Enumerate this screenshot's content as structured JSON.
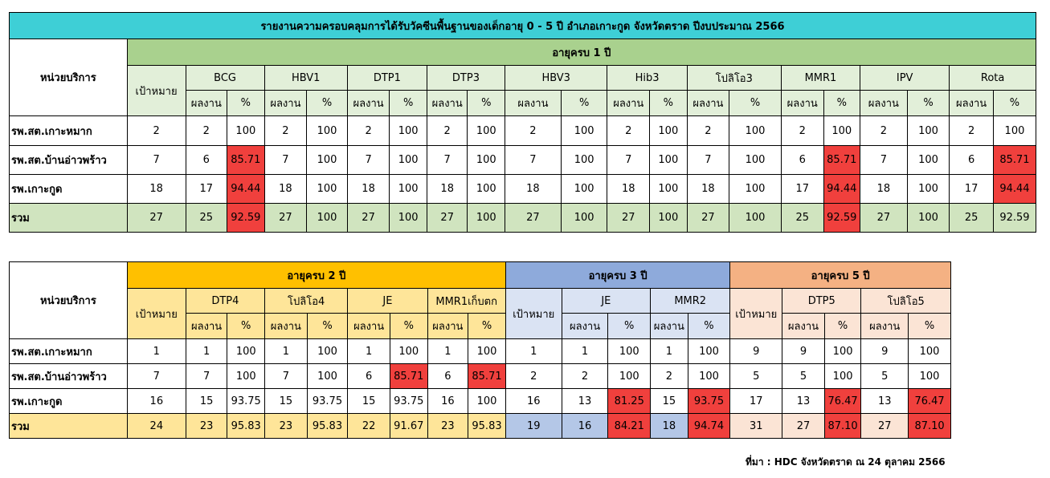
{
  "title": "รายงานความครอบคลุมการได้รับวัคซีนพื้นฐานของเด็กอายุ 0 - 5 ปี อำเภอเกาะกูด จังหวัดตราด  ปีงบประมาณ 2566",
  "unit_label": "หน่วยบริการ",
  "target_label": "เป้าหมาย",
  "count_label": "ผลงาน",
  "pct_label": "%",
  "colors": {
    "title": "#3ecfd6",
    "age1": "#a9d18e",
    "age2": "#ffc000",
    "age3": "#8eaadb",
    "age5": "#f4b183",
    "alert": "#f0403d"
  },
  "table1": {
    "group_label": "อายุครบ 1 ปี",
    "vaccines": [
      "BCG",
      "HBV1",
      "DTP1",
      "DTP3",
      "HBV3",
      "Hib3",
      "โปลิโอ3",
      "MMR1",
      "IPV",
      "Rota"
    ],
    "rows": [
      {
        "unit": "รพ.สต.เกาะหมาก",
        "target": "2",
        "cells": [
          [
            "2",
            "100"
          ],
          [
            "2",
            "100"
          ],
          [
            "2",
            "100"
          ],
          [
            "2",
            "100"
          ],
          [
            "2",
            "100"
          ],
          [
            "2",
            "100"
          ],
          [
            "2",
            "100"
          ],
          [
            "2",
            "100"
          ],
          [
            "2",
            "100"
          ],
          [
            "2",
            "100"
          ]
        ]
      },
      {
        "unit": "รพ.สต.บ้านอ่าวพร้าว",
        "target": "7",
        "cells": [
          [
            "6",
            "85.71"
          ],
          [
            "7",
            "100"
          ],
          [
            "7",
            "100"
          ],
          [
            "7",
            "100"
          ],
          [
            "7",
            "100"
          ],
          [
            "7",
            "100"
          ],
          [
            "7",
            "100"
          ],
          [
            "6",
            "85.71"
          ],
          [
            "7",
            "100"
          ],
          [
            "6",
            "85.71"
          ]
        ]
      },
      {
        "unit": "รพ.เกาะกูด",
        "target": "18",
        "cells": [
          [
            "17",
            "94.44"
          ],
          [
            "18",
            "100"
          ],
          [
            "18",
            "100"
          ],
          [
            "18",
            "100"
          ],
          [
            "18",
            "100"
          ],
          [
            "18",
            "100"
          ],
          [
            "18",
            "100"
          ],
          [
            "17",
            "94.44"
          ],
          [
            "18",
            "100"
          ],
          [
            "17",
            "94.44"
          ]
        ]
      },
      {
        "unit": "รวม",
        "target": "27",
        "cells": [
          [
            "25",
            "92.59"
          ],
          [
            "27",
            "100"
          ],
          [
            "27",
            "100"
          ],
          [
            "27",
            "100"
          ],
          [
            "27",
            "100"
          ],
          [
            "27",
            "100"
          ],
          [
            "27",
            "100"
          ],
          [
            "25",
            "92.59"
          ],
          [
            "27",
            "100"
          ],
          [
            "25",
            "92.59"
          ]
        ]
      }
    ]
  },
  "table2": {
    "groups": [
      {
        "label": "อายุครบ 2 ปี",
        "vaccines": [
          "DTP4",
          "โปลิโอ4",
          "JE",
          "MMR1เก็บตก"
        ]
      },
      {
        "label": "อายุครบ 3 ปี",
        "vaccines": [
          "JE",
          "MMR2"
        ]
      },
      {
        "label": "อายุครบ 5 ปี",
        "vaccines": [
          "DTP5",
          "โปลิโอ5"
        ]
      }
    ],
    "rows": [
      {
        "unit": "รพ.สต.เกาะหมาก",
        "g2": {
          "target": "1",
          "cells": [
            [
              "1",
              "100"
            ],
            [
              "1",
              "100"
            ],
            [
              "1",
              "100"
            ],
            [
              "1",
              "100"
            ]
          ]
        },
        "g3": {
          "target": "1",
          "cells": [
            [
              "1",
              "100"
            ],
            [
              "1",
              "100"
            ]
          ]
        },
        "g5": {
          "target": "9",
          "cells": [
            [
              "9",
              "100"
            ],
            [
              "9",
              "100"
            ]
          ]
        }
      },
      {
        "unit": "รพ.สต.บ้านอ่าวพร้าว",
        "g2": {
          "target": "7",
          "cells": [
            [
              "7",
              "100"
            ],
            [
              "7",
              "100"
            ],
            [
              "6",
              "85.71"
            ],
            [
              "6",
              "85.71"
            ]
          ]
        },
        "g3": {
          "target": "2",
          "cells": [
            [
              "2",
              "100"
            ],
            [
              "2",
              "100"
            ]
          ]
        },
        "g5": {
          "target": "5",
          "cells": [
            [
              "5",
              "100"
            ],
            [
              "5",
              "100"
            ]
          ]
        }
      },
      {
        "unit": "รพ.เกาะกูด",
        "g2": {
          "target": "16",
          "cells": [
            [
              "15",
              "93.75"
            ],
            [
              "15",
              "93.75"
            ],
            [
              "15",
              "93.75"
            ],
            [
              "16",
              "100"
            ]
          ]
        },
        "g3": {
          "target": "16",
          "cells": [
            [
              "13",
              "81.25"
            ],
            [
              "15",
              "93.75"
            ]
          ]
        },
        "g5": {
          "target": "17",
          "cells": [
            [
              "13",
              "76.47"
            ],
            [
              "13",
              "76.47"
            ]
          ]
        }
      },
      {
        "unit": "รวม",
        "g2": {
          "target": "24",
          "cells": [
            [
              "23",
              "95.83"
            ],
            [
              "23",
              "95.83"
            ],
            [
              "22",
              "91.67"
            ],
            [
              "23",
              "95.83"
            ]
          ]
        },
        "g3": {
          "target": "19",
          "cells": [
            [
              "16",
              "84.21"
            ],
            [
              "18",
              "94.74"
            ]
          ]
        },
        "g5": {
          "target": "31",
          "cells": [
            [
              "27",
              "87.10"
            ],
            [
              "27",
              "87.10"
            ]
          ]
        }
      }
    ]
  },
  "source": "ที่มา : HDC จังหวัดตราด ณ 24 ตุลาคม 2566"
}
